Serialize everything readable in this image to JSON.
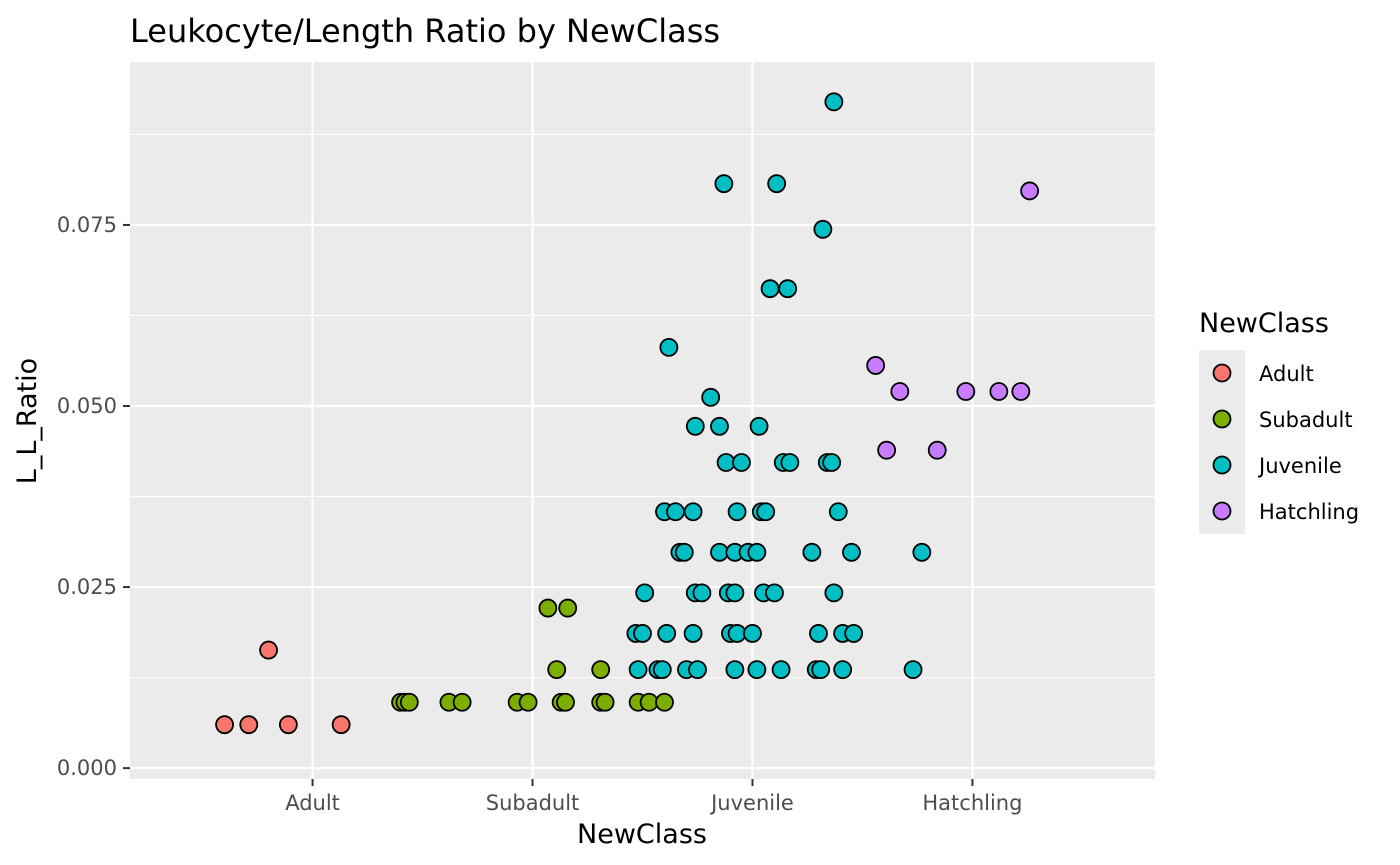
{
  "chart_data": {
    "type": "scatter",
    "title": "Leukocyte/Length Ratio by NewClass",
    "xlabel": "NewClass",
    "ylabel": "L_L_Ratio",
    "categories": [
      "Adult",
      "Subadult",
      "Juvenile",
      "Hatchling"
    ],
    "ylim": [
      -0.0015,
      0.0975
    ],
    "yticks": [
      0.0,
      0.025,
      0.05,
      0.075
    ],
    "ytick_labels": [
      "0.000",
      "0.025",
      "0.050",
      "0.075"
    ],
    "grid": true,
    "legend": {
      "title": "NewClass",
      "position": "right",
      "entries": [
        "Adult",
        "Subadult",
        "Juvenile",
        "Hatchling"
      ]
    },
    "colors": {
      "Adult": "#F8766D",
      "Subadult": "#7CAE00",
      "Juvenile": "#00BFC4",
      "Hatchling": "#C77CFF",
      "panel": "#EBEBEB",
      "grid": "#FFFFFF"
    },
    "series": [
      {
        "name": "Adult",
        "points": [
          [
            0.6,
            0.006
          ],
          [
            0.71,
            0.006
          ],
          [
            0.89,
            0.006
          ],
          [
            1.13,
            0.006
          ],
          [
            0.8,
            0.0163
          ]
        ]
      },
      {
        "name": "Subadult",
        "points": [
          [
            1.4,
            0.0091
          ],
          [
            1.42,
            0.0091
          ],
          [
            1.44,
            0.0091
          ],
          [
            1.62,
            0.0091
          ],
          [
            1.68,
            0.0091
          ],
          [
            1.93,
            0.0091
          ],
          [
            1.98,
            0.0091
          ],
          [
            2.13,
            0.0091
          ],
          [
            2.15,
            0.0091
          ],
          [
            2.31,
            0.0091
          ],
          [
            2.33,
            0.0091
          ],
          [
            2.48,
            0.0091
          ],
          [
            2.53,
            0.0091
          ],
          [
            2.6,
            0.0091
          ],
          [
            2.11,
            0.0136
          ],
          [
            2.31,
            0.0136
          ],
          [
            2.07,
            0.0221
          ],
          [
            2.16,
            0.0221
          ]
        ]
      },
      {
        "name": "Juvenile",
        "points": [
          [
            2.48,
            0.0136
          ],
          [
            2.57,
            0.0136
          ],
          [
            2.59,
            0.0136
          ],
          [
            2.7,
            0.0136
          ],
          [
            2.75,
            0.0136
          ],
          [
            2.92,
            0.0136
          ],
          [
            3.02,
            0.0136
          ],
          [
            3.13,
            0.0136
          ],
          [
            3.29,
            0.0136
          ],
          [
            3.31,
            0.0136
          ],
          [
            3.41,
            0.0136
          ],
          [
            3.73,
            0.0136
          ],
          [
            2.47,
            0.0186
          ],
          [
            2.5,
            0.0186
          ],
          [
            2.61,
            0.0186
          ],
          [
            2.73,
            0.0186
          ],
          [
            2.9,
            0.0186
          ],
          [
            2.93,
            0.0186
          ],
          [
            3.0,
            0.0186
          ],
          [
            3.3,
            0.0186
          ],
          [
            3.41,
            0.0186
          ],
          [
            3.46,
            0.0186
          ],
          [
            2.51,
            0.0242
          ],
          [
            2.74,
            0.0242
          ],
          [
            2.77,
            0.0242
          ],
          [
            2.89,
            0.0242
          ],
          [
            2.92,
            0.0242
          ],
          [
            3.05,
            0.0242
          ],
          [
            3.1,
            0.0242
          ],
          [
            3.37,
            0.0242
          ],
          [
            2.67,
            0.0298
          ],
          [
            2.69,
            0.0298
          ],
          [
            2.85,
            0.0298
          ],
          [
            2.92,
            0.0298
          ],
          [
            2.98,
            0.0298
          ],
          [
            3.02,
            0.0298
          ],
          [
            3.27,
            0.0298
          ],
          [
            3.45,
            0.0298
          ],
          [
            3.77,
            0.0298
          ],
          [
            2.6,
            0.0354
          ],
          [
            2.65,
            0.0354
          ],
          [
            2.73,
            0.0354
          ],
          [
            2.93,
            0.0354
          ],
          [
            3.04,
            0.0354
          ],
          [
            3.06,
            0.0354
          ],
          [
            3.39,
            0.0354
          ],
          [
            2.88,
            0.0422
          ],
          [
            2.95,
            0.0422
          ],
          [
            3.14,
            0.0422
          ],
          [
            3.17,
            0.0422
          ],
          [
            3.34,
            0.0422
          ],
          [
            3.36,
            0.0422
          ],
          [
            2.74,
            0.0472
          ],
          [
            2.85,
            0.0472
          ],
          [
            3.03,
            0.0472
          ],
          [
            2.81,
            0.0512
          ],
          [
            2.62,
            0.0581
          ],
          [
            3.08,
            0.0662
          ],
          [
            3.16,
            0.0662
          ],
          [
            3.32,
            0.0744
          ],
          [
            2.87,
            0.0807
          ],
          [
            3.11,
            0.0807
          ],
          [
            3.37,
            0.092
          ]
        ]
      },
      {
        "name": "Hatchling",
        "points": [
          [
            3.61,
            0.0439
          ],
          [
            3.84,
            0.0439
          ],
          [
            3.56,
            0.0556
          ],
          [
            3.67,
            0.052
          ],
          [
            3.97,
            0.052
          ],
          [
            4.12,
            0.052
          ],
          [
            4.22,
            0.052
          ],
          [
            4.26,
            0.0797
          ]
        ]
      }
    ]
  }
}
